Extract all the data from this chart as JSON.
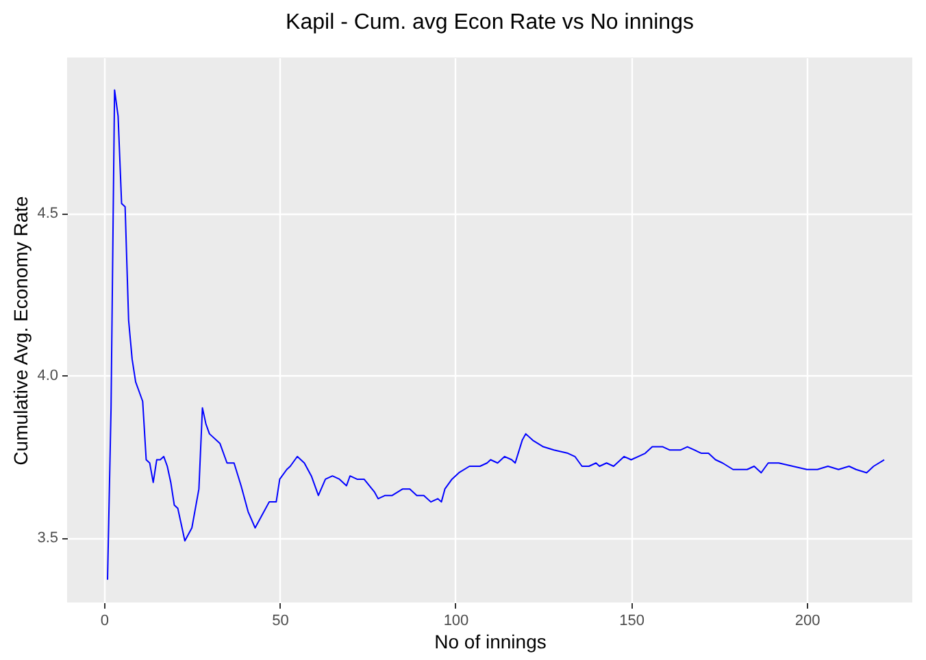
{
  "chart_data": {
    "type": "line",
    "title": "Kapil - Cum. avg Econ Rate vs No innings",
    "xlabel": "No of innings",
    "ylabel": "Cumulative Avg. Economy Rate",
    "x": [
      1,
      2,
      3,
      4,
      5,
      6,
      7,
      8,
      9,
      10,
      11,
      12,
      13,
      14,
      15,
      16,
      17,
      18,
      19,
      20,
      21,
      23,
      25,
      27,
      28,
      29,
      30,
      33,
      35,
      37,
      39,
      41,
      43,
      45,
      47,
      49,
      50,
      52,
      53,
      55,
      57,
      59,
      61,
      63,
      65,
      67,
      69,
      70,
      72,
      74,
      77,
      78,
      80,
      82,
      85,
      87,
      89,
      91,
      93,
      95,
      96,
      97,
      99,
      101,
      104,
      107,
      109,
      110,
      112,
      114,
      116,
      117,
      119,
      120,
      122,
      125,
      128,
      132,
      134,
      136,
      138,
      140,
      141,
      143,
      145,
      147,
      148,
      150,
      152,
      154,
      156,
      159,
      161,
      164,
      166,
      170,
      172,
      174,
      176,
      179,
      183,
      185,
      187,
      189,
      192,
      196,
      200,
      203,
      206,
      209,
      212,
      214,
      217,
      219,
      222
    ],
    "series": [
      {
        "color": "#0000ff",
        "values": [
          3.37,
          3.9,
          4.88,
          4.8,
          4.53,
          4.52,
          4.17,
          4.05,
          3.98,
          3.95,
          3.92,
          3.74,
          3.73,
          3.67,
          3.74,
          3.74,
          3.75,
          3.72,
          3.67,
          3.6,
          3.59,
          3.49,
          3.53,
          3.65,
          3.9,
          3.85,
          3.82,
          3.79,
          3.73,
          3.73,
          3.66,
          3.58,
          3.53,
          3.57,
          3.61,
          3.61,
          3.68,
          3.71,
          3.72,
          3.75,
          3.73,
          3.69,
          3.63,
          3.68,
          3.69,
          3.68,
          3.66,
          3.69,
          3.68,
          3.68,
          3.64,
          3.62,
          3.63,
          3.63,
          3.65,
          3.65,
          3.63,
          3.63,
          3.61,
          3.62,
          3.61,
          3.65,
          3.68,
          3.7,
          3.72,
          3.72,
          3.73,
          3.74,
          3.73,
          3.75,
          3.74,
          3.73,
          3.8,
          3.82,
          3.8,
          3.78,
          3.77,
          3.76,
          3.75,
          3.72,
          3.72,
          3.73,
          3.72,
          3.73,
          3.72,
          3.74,
          3.75,
          3.74,
          3.75,
          3.76,
          3.78,
          3.78,
          3.77,
          3.77,
          3.78,
          3.76,
          3.76,
          3.74,
          3.73,
          3.71,
          3.71,
          3.72,
          3.7,
          3.73,
          3.73,
          3.72,
          3.71,
          3.71,
          3.72,
          3.71,
          3.72,
          3.71,
          3.7,
          3.72,
          3.74
        ]
      }
    ],
    "xlim": [
      -10.5,
      230
    ],
    "xticks": [
      0,
      50,
      100,
      150,
      200
    ],
    "ylim": [
      3.3,
      4.98
    ],
    "yticks": [
      3.5,
      {
        "value": 4,
        "label": "4.0"
      },
      4.5
    ],
    "grid": true,
    "line_style": "solid"
  }
}
